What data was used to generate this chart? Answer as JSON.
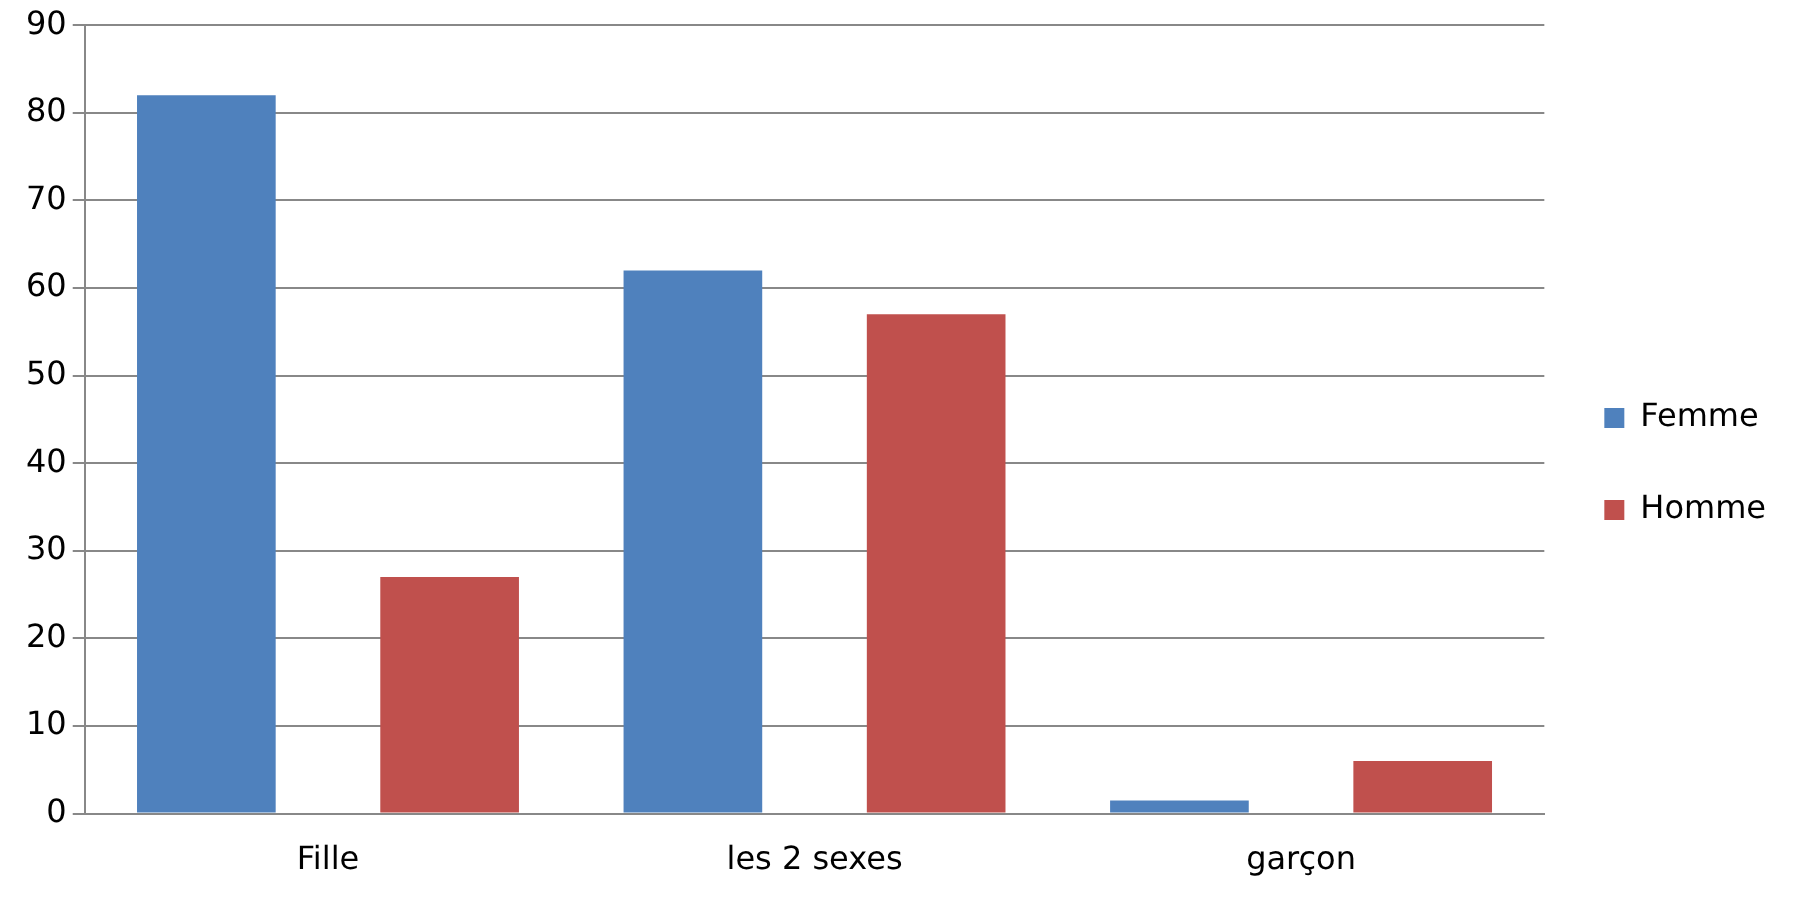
{
  "chart_data": {
    "type": "bar",
    "categories": [
      "Fille",
      "les 2 sexes",
      "garçon"
    ],
    "series": [
      {
        "name": "Femme",
        "color": "#4f81bd",
        "values": [
          82,
          62,
          1.5
        ]
      },
      {
        "name": "Homme",
        "color": "#c0504d",
        "values": [
          27,
          57,
          6
        ]
      }
    ],
    "ylim": [
      0,
      90
    ],
    "yticks": [
      0,
      10,
      20,
      30,
      40,
      50,
      60,
      70,
      80,
      90
    ],
    "grid": "y",
    "legend": "right"
  }
}
